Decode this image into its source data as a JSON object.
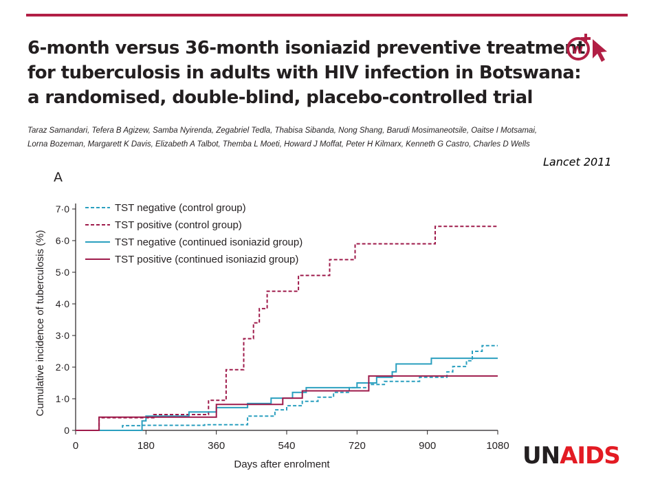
{
  "header": {
    "title_lines": [
      "6-month versus 36-month isoniazid preventive treatment",
      "for tuberculosis in adults with HIV infection in Botswana:",
      "a randomised, double-blind, placebo-controlled trial"
    ],
    "author_lines": [
      "Taraz Samandari, Tefera B Agizew, Samba Nyirenda, Zegabriel Tedla, Thabisa Sibanda, Nong Shang, Barudi Mosimaneotsile, Oaitse I Motsamai,",
      "Lorna Bozeman, Margarett K Davis, Elizabeth A Talbot, Themba L Moeti, Howard J Moffat, Peter H Kilmarx, Kenneth G Castro, Charles D Wells"
    ],
    "journal": "Lancet 2011",
    "panel_label": "A",
    "logo_icon": "wiley-crossmark-icon"
  },
  "footer": {
    "brand_un": "UN",
    "brand_aids": "AIDS"
  },
  "colors": {
    "accent_rule": "#b21f45",
    "teal": "#2a9fbf",
    "maroon": "#9e1a4a",
    "unaids_red": "#e31b23"
  },
  "chart_data": {
    "type": "line",
    "step": true,
    "xlabel": "Days after enrolment",
    "ylabel": "Cumulative incidence of tuberculosis (%)",
    "xlim": [
      0,
      1080
    ],
    "ylim": [
      0,
      7
    ],
    "xticks": [
      0,
      180,
      360,
      540,
      720,
      900,
      1080
    ],
    "yticks": [
      0,
      1,
      2,
      3,
      4,
      5,
      6,
      7
    ],
    "xtick_labels": [
      "0",
      "180",
      "360",
      "540",
      "720",
      "900",
      "1080"
    ],
    "ytick_labels": [
      "0",
      "1·0",
      "2·0",
      "3·0",
      "4·0",
      "5·0",
      "6·0",
      "7·0"
    ],
    "legend_position": "top-left",
    "grid": false,
    "series": [
      {
        "name": "TST negative (control group)",
        "color": "#2a9fbf",
        "dash": true,
        "points": [
          [
            0,
            0
          ],
          [
            120,
            0
          ],
          [
            120,
            0.15
          ],
          [
            170,
            0.15
          ],
          [
            170,
            0.16
          ],
          [
            330,
            0.16
          ],
          [
            330,
            0.18
          ],
          [
            440,
            0.18
          ],
          [
            440,
            0.45
          ],
          [
            510,
            0.45
          ],
          [
            510,
            0.65
          ],
          [
            540,
            0.65
          ],
          [
            540,
            0.78
          ],
          [
            580,
            0.78
          ],
          [
            580,
            0.92
          ],
          [
            620,
            0.92
          ],
          [
            620,
            1.05
          ],
          [
            660,
            1.05
          ],
          [
            660,
            1.2
          ],
          [
            700,
            1.2
          ],
          [
            700,
            1.35
          ],
          [
            750,
            1.35
          ],
          [
            750,
            1.45
          ],
          [
            790,
            1.45
          ],
          [
            790,
            1.55
          ],
          [
            880,
            1.55
          ],
          [
            880,
            1.68
          ],
          [
            950,
            1.68
          ],
          [
            950,
            1.85
          ],
          [
            965,
            1.85
          ],
          [
            965,
            2.02
          ],
          [
            1000,
            2.02
          ],
          [
            1000,
            2.2
          ],
          [
            1015,
            2.2
          ],
          [
            1015,
            2.5
          ],
          [
            1040,
            2.5
          ],
          [
            1040,
            2.68
          ],
          [
            1080,
            2.68
          ]
        ]
      },
      {
        "name": "TST positive (control group)",
        "color": "#9e1a4a",
        "dash": true,
        "points": [
          [
            0,
            0
          ],
          [
            60,
            0
          ],
          [
            60,
            0.4
          ],
          [
            200,
            0.4
          ],
          [
            200,
            0.5
          ],
          [
            340,
            0.5
          ],
          [
            340,
            0.95
          ],
          [
            385,
            0.95
          ],
          [
            385,
            1.92
          ],
          [
            430,
            1.92
          ],
          [
            430,
            2.9
          ],
          [
            455,
            2.9
          ],
          [
            455,
            3.4
          ],
          [
            470,
            3.4
          ],
          [
            470,
            3.85
          ],
          [
            490,
            3.85
          ],
          [
            490,
            4.4
          ],
          [
            570,
            4.4
          ],
          [
            570,
            4.9
          ],
          [
            650,
            4.9
          ],
          [
            650,
            5.4
          ],
          [
            715,
            5.4
          ],
          [
            715,
            5.9
          ],
          [
            920,
            5.9
          ],
          [
            920,
            6.45
          ],
          [
            1080,
            6.45
          ]
        ]
      },
      {
        "name": "TST negative (continued isoniazid group)",
        "color": "#2a9fbf",
        "dash": false,
        "points": [
          [
            0,
            0
          ],
          [
            170,
            0
          ],
          [
            170,
            0.3
          ],
          [
            180,
            0.3
          ],
          [
            180,
            0.45
          ],
          [
            290,
            0.45
          ],
          [
            290,
            0.58
          ],
          [
            360,
            0.58
          ],
          [
            360,
            0.72
          ],
          [
            440,
            0.72
          ],
          [
            440,
            0.85
          ],
          [
            500,
            0.85
          ],
          [
            500,
            1.02
          ],
          [
            555,
            1.02
          ],
          [
            555,
            1.2
          ],
          [
            590,
            1.2
          ],
          [
            590,
            1.35
          ],
          [
            720,
            1.35
          ],
          [
            720,
            1.5
          ],
          [
            770,
            1.5
          ],
          [
            770,
            1.68
          ],
          [
            810,
            1.68
          ],
          [
            810,
            1.85
          ],
          [
            820,
            1.85
          ],
          [
            820,
            2.1
          ],
          [
            910,
            2.1
          ],
          [
            910,
            2.28
          ],
          [
            1080,
            2.28
          ]
        ]
      },
      {
        "name": "TST positive (continued isoniazid group)",
        "color": "#9e1a4a",
        "dash": false,
        "points": [
          [
            0,
            0
          ],
          [
            60,
            0
          ],
          [
            60,
            0.42
          ],
          [
            360,
            0.42
          ],
          [
            360,
            0.82
          ],
          [
            530,
            0.82
          ],
          [
            530,
            1.02
          ],
          [
            580,
            1.02
          ],
          [
            580,
            1.25
          ],
          [
            750,
            1.25
          ],
          [
            750,
            1.72
          ],
          [
            1080,
            1.72
          ]
        ]
      }
    ]
  }
}
